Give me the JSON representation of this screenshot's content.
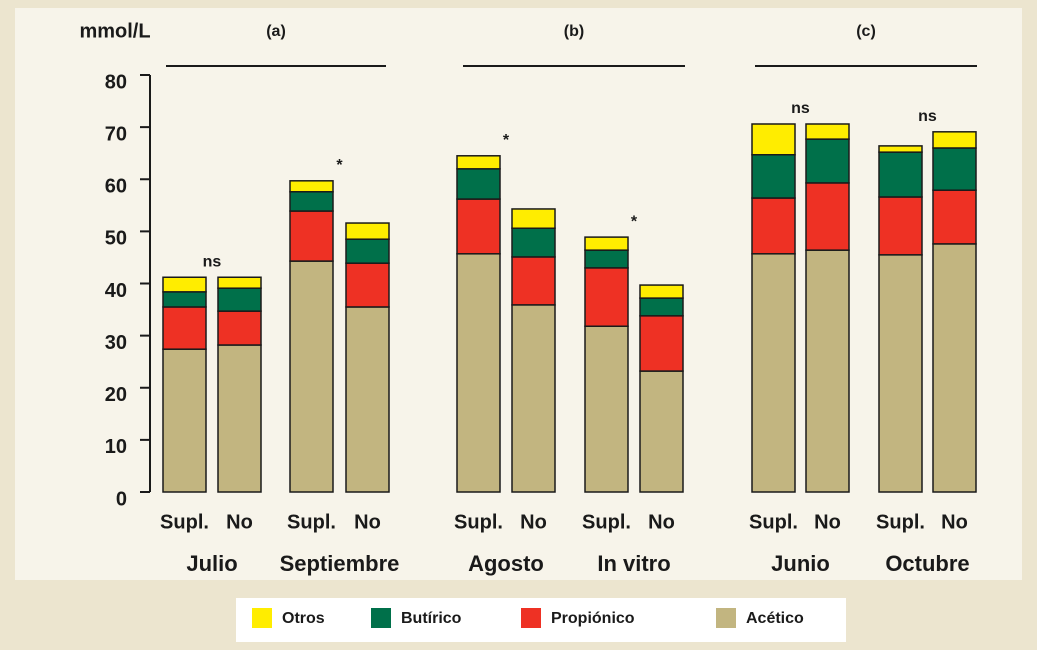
{
  "chart_data": {
    "type": "stacked-bar",
    "y_label": "mmol/L",
    "panels": [
      "(a)",
      "(b)",
      "(c)"
    ],
    "groups": [
      "Julio",
      "Septiembre",
      "Agosto",
      "In vitro",
      "Junio",
      "Octubre"
    ],
    "categories": [
      "Supl.",
      "No",
      "Supl.",
      "No",
      "Supl.",
      "No",
      "Supl.",
      "No",
      "Supl.",
      "No",
      "Supl.",
      "No"
    ],
    "annotations": [
      "ns",
      "*",
      "*",
      "*",
      "ns",
      "ns"
    ],
    "series": [
      {
        "name": "Otros",
        "color": "#ffed00",
        "values": [
          2.8,
          2.1,
          2.1,
          3.1,
          2.5,
          3.7,
          2.5,
          2.5,
          5.9,
          2.9,
          1.2,
          3.1
        ]
      },
      {
        "name": "Butírico",
        "color": "#00704a",
        "values": [
          2.9,
          4.4,
          3.7,
          4.6,
          5.8,
          5.5,
          3.4,
          3.4,
          8.3,
          8.4,
          8.6,
          8.1
        ]
      },
      {
        "name": "Propiónico",
        "color": "#ee3124",
        "values": [
          8.1,
          6.5,
          9.6,
          8.4,
          10.5,
          9.2,
          11.2,
          10.6,
          10.7,
          12.9,
          11.1,
          10.3
        ]
      },
      {
        "name": "Acético",
        "color": "#c2b580",
        "values": [
          27.4,
          28.2,
          44.3,
          35.5,
          45.7,
          35.9,
          31.8,
          23.2,
          45.7,
          46.4,
          45.5,
          47.6
        ]
      }
    ],
    "ylim": [
      0,
      80
    ],
    "yticks": [
      0,
      10,
      20,
      30,
      40,
      50,
      60,
      70,
      80
    ]
  }
}
